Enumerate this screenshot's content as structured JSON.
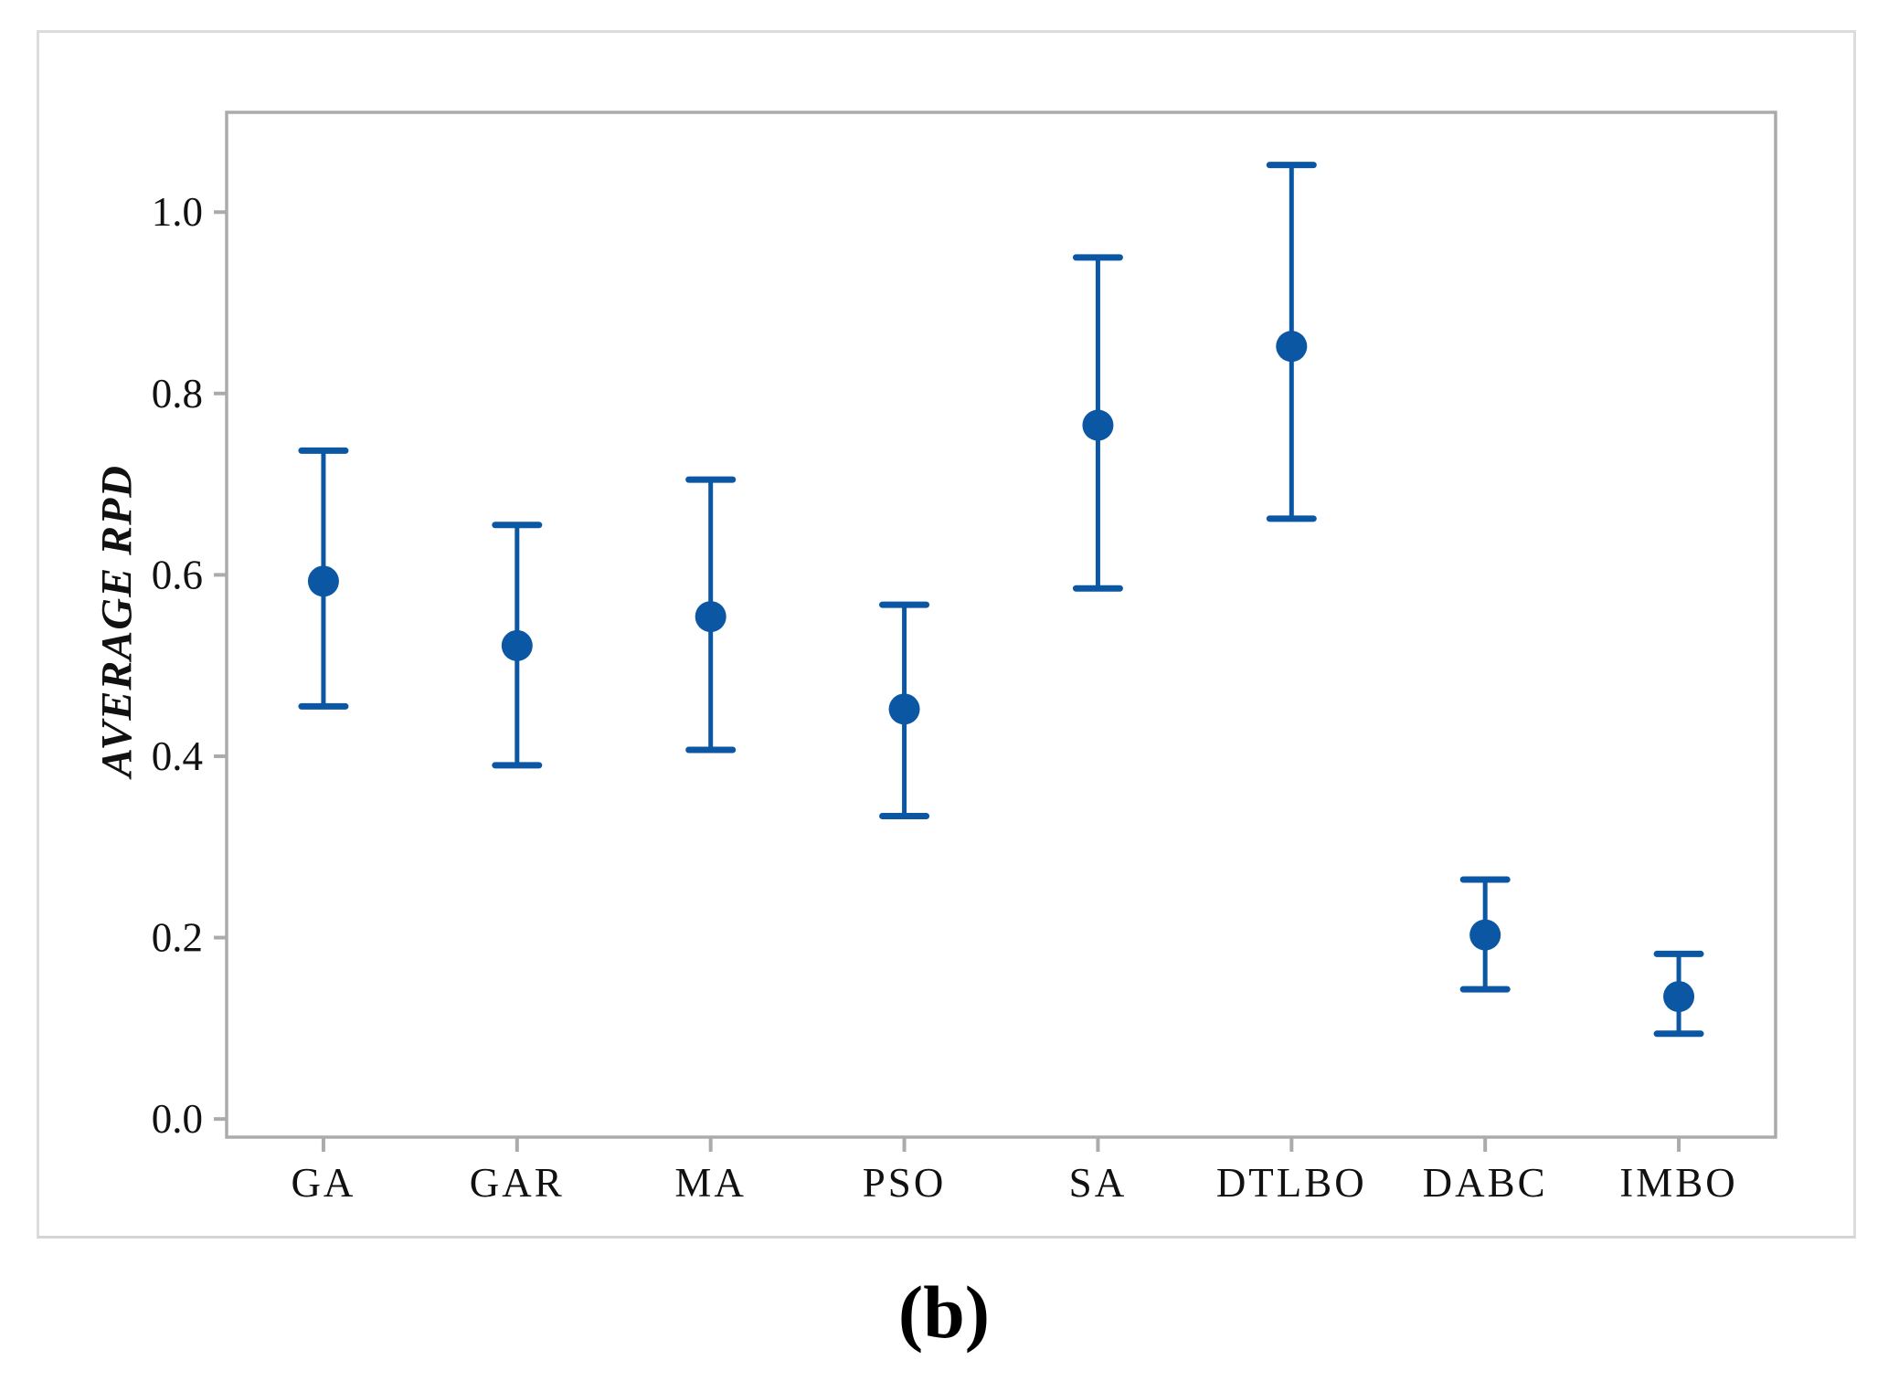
{
  "figure": {
    "caption": "(b)"
  },
  "chart_data": {
    "type": "scatter",
    "subtype": "interval plot: mean dot with error bars",
    "title": "",
    "xlabel": "",
    "ylabel": "AVERAGE RPD",
    "categories": [
      "GA",
      "GAR",
      "MA",
      "PSO",
      "SA",
      "DTLBO",
      "DABC",
      "IMBO"
    ],
    "series": [
      {
        "name": "Average RPD",
        "means": [
          0.593,
          0.522,
          0.554,
          0.452,
          0.765,
          0.852,
          0.203,
          0.135
        ],
        "lower": [
          0.455,
          0.39,
          0.407,
          0.334,
          0.585,
          0.662,
          0.143,
          0.094
        ],
        "upper": [
          0.737,
          0.655,
          0.705,
          0.567,
          0.95,
          1.052,
          0.264,
          0.182
        ]
      }
    ],
    "yticks": [
      0.0,
      0.2,
      0.4,
      0.6,
      0.8,
      1.0
    ],
    "ytick_labels": [
      "0.0",
      "0.2",
      "0.4",
      "0.6",
      "0.8",
      "1.0"
    ],
    "ylim": [
      -0.02,
      1.11
    ],
    "grid": false,
    "legend_position": "none",
    "marker_color": "#0B57A4",
    "frame_color": "#ABABAB"
  }
}
